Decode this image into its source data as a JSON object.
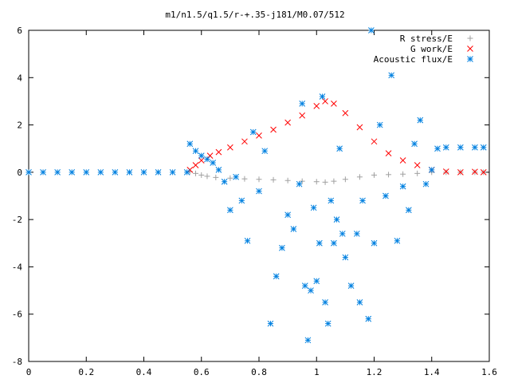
{
  "chart_data": {
    "type": "scatter",
    "title": "m1/n1.5/q1.5/r-+.35-j181/M0.07/512",
    "xlabel": "",
    "ylabel": "",
    "xlim": [
      0,
      1.6
    ],
    "ylim": [
      -8,
      6
    ],
    "xticks": [
      "0",
      "0.2",
      "0.4",
      "0.6",
      "0.8",
      "1",
      "1.2",
      "1.4",
      "1.6"
    ],
    "yticks": [
      "6",
      "4",
      "2",
      "0",
      "-2",
      "-4",
      "-6",
      "-8"
    ],
    "xtick_values": [
      0,
      0.2,
      0.4,
      0.6,
      0.8,
      1.0,
      1.2,
      1.4,
      1.6
    ],
    "ytick_values": [
      6,
      4,
      2,
      0,
      -2,
      -4,
      -6,
      -8
    ],
    "legend_position": "top-right",
    "series": [
      {
        "name": "R stress/E",
        "marker": "+",
        "color": "#a0a0a0",
        "points": [
          [
            0.56,
            0.03
          ],
          [
            0.58,
            -0.05
          ],
          [
            0.6,
            -0.12
          ],
          [
            0.62,
            -0.17
          ],
          [
            0.65,
            -0.22
          ],
          [
            0.7,
            -0.25
          ],
          [
            0.75,
            -0.28
          ],
          [
            0.8,
            -0.3
          ],
          [
            0.85,
            -0.32
          ],
          [
            0.9,
            -0.35
          ],
          [
            0.95,
            -0.38
          ],
          [
            1.0,
            -0.4
          ],
          [
            1.03,
            -0.42
          ],
          [
            1.06,
            -0.38
          ],
          [
            1.1,
            -0.3
          ],
          [
            1.15,
            -0.2
          ],
          [
            1.2,
            -0.12
          ],
          [
            1.25,
            -0.1
          ],
          [
            1.3,
            -0.08
          ],
          [
            1.35,
            -0.05
          ],
          [
            1.4,
            0.0
          ],
          [
            1.45,
            0.0
          ],
          [
            1.5,
            0.0
          ],
          [
            1.55,
            0.0
          ],
          [
            1.58,
            0.0
          ]
        ]
      },
      {
        "name": "G work/E",
        "marker": "x",
        "color": "#ff0000",
        "points": [
          [
            0.56,
            0.1
          ],
          [
            0.58,
            0.3
          ],
          [
            0.6,
            0.5
          ],
          [
            0.63,
            0.7
          ],
          [
            0.66,
            0.85
          ],
          [
            0.7,
            1.05
          ],
          [
            0.75,
            1.3
          ],
          [
            0.8,
            1.55
          ],
          [
            0.85,
            1.8
          ],
          [
            0.9,
            2.1
          ],
          [
            0.95,
            2.4
          ],
          [
            1.0,
            2.8
          ],
          [
            1.03,
            3.0
          ],
          [
            1.06,
            2.9
          ],
          [
            1.1,
            2.5
          ],
          [
            1.15,
            1.9
          ],
          [
            1.2,
            1.3
          ],
          [
            1.25,
            0.8
          ],
          [
            1.3,
            0.5
          ],
          [
            1.35,
            0.3
          ],
          [
            1.4,
            0.1
          ],
          [
            1.45,
            0.03
          ],
          [
            1.5,
            0.0
          ],
          [
            1.55,
            0.02
          ],
          [
            1.58,
            0.0
          ]
        ]
      },
      {
        "name": "Acoustic flux/E",
        "marker": "*",
        "color": "#0080e0",
        "points": [
          [
            0.0,
            0.0
          ],
          [
            0.05,
            0.0
          ],
          [
            0.1,
            0.0
          ],
          [
            0.15,
            0.0
          ],
          [
            0.2,
            0.0
          ],
          [
            0.25,
            0.0
          ],
          [
            0.3,
            0.0
          ],
          [
            0.35,
            0.0
          ],
          [
            0.4,
            0.0
          ],
          [
            0.45,
            0.0
          ],
          [
            0.5,
            0.0
          ],
          [
            0.55,
            0.0
          ],
          [
            0.56,
            1.2
          ],
          [
            0.58,
            0.9
          ],
          [
            0.6,
            0.7
          ],
          [
            0.62,
            0.55
          ],
          [
            0.64,
            0.4
          ],
          [
            0.66,
            0.1
          ],
          [
            0.68,
            -0.4
          ],
          [
            0.7,
            -1.6
          ],
          [
            0.72,
            -0.2
          ],
          [
            0.74,
            -1.2
          ],
          [
            0.76,
            -2.9
          ],
          [
            0.78,
            1.7
          ],
          [
            0.8,
            -0.8
          ],
          [
            0.82,
            0.9
          ],
          [
            0.84,
            -6.4
          ],
          [
            0.86,
            -4.4
          ],
          [
            0.88,
            -3.2
          ],
          [
            0.9,
            -1.8
          ],
          [
            0.92,
            -2.4
          ],
          [
            0.94,
            -0.5
          ],
          [
            0.95,
            2.9
          ],
          [
            0.96,
            -4.8
          ],
          [
            0.97,
            -7.1
          ],
          [
            0.98,
            -5.0
          ],
          [
            0.99,
            -1.5
          ],
          [
            1.0,
            -4.6
          ],
          [
            1.01,
            -3.0
          ],
          [
            1.02,
            3.2
          ],
          [
            1.03,
            -5.5
          ],
          [
            1.04,
            -6.4
          ],
          [
            1.05,
            -1.2
          ],
          [
            1.06,
            -3.0
          ],
          [
            1.07,
            -2.0
          ],
          [
            1.08,
            1.0
          ],
          [
            1.09,
            -2.6
          ],
          [
            1.1,
            -3.6
          ],
          [
            1.12,
            -4.8
          ],
          [
            1.14,
            -2.6
          ],
          [
            1.15,
            -5.5
          ],
          [
            1.16,
            -1.2
          ],
          [
            1.18,
            -6.2
          ],
          [
            1.19,
            6.0
          ],
          [
            1.2,
            -3.0
          ],
          [
            1.22,
            2.0
          ],
          [
            1.24,
            -1.0
          ],
          [
            1.26,
            4.1
          ],
          [
            1.28,
            -2.9
          ],
          [
            1.3,
            -0.6
          ],
          [
            1.32,
            -1.6
          ],
          [
            1.34,
            1.2
          ],
          [
            1.36,
            2.2
          ],
          [
            1.38,
            -0.5
          ],
          [
            1.4,
            0.1
          ],
          [
            1.42,
            1.0
          ],
          [
            1.45,
            1.05
          ],
          [
            1.5,
            1.05
          ],
          [
            1.55,
            1.05
          ],
          [
            1.58,
            1.05
          ]
        ]
      }
    ]
  }
}
